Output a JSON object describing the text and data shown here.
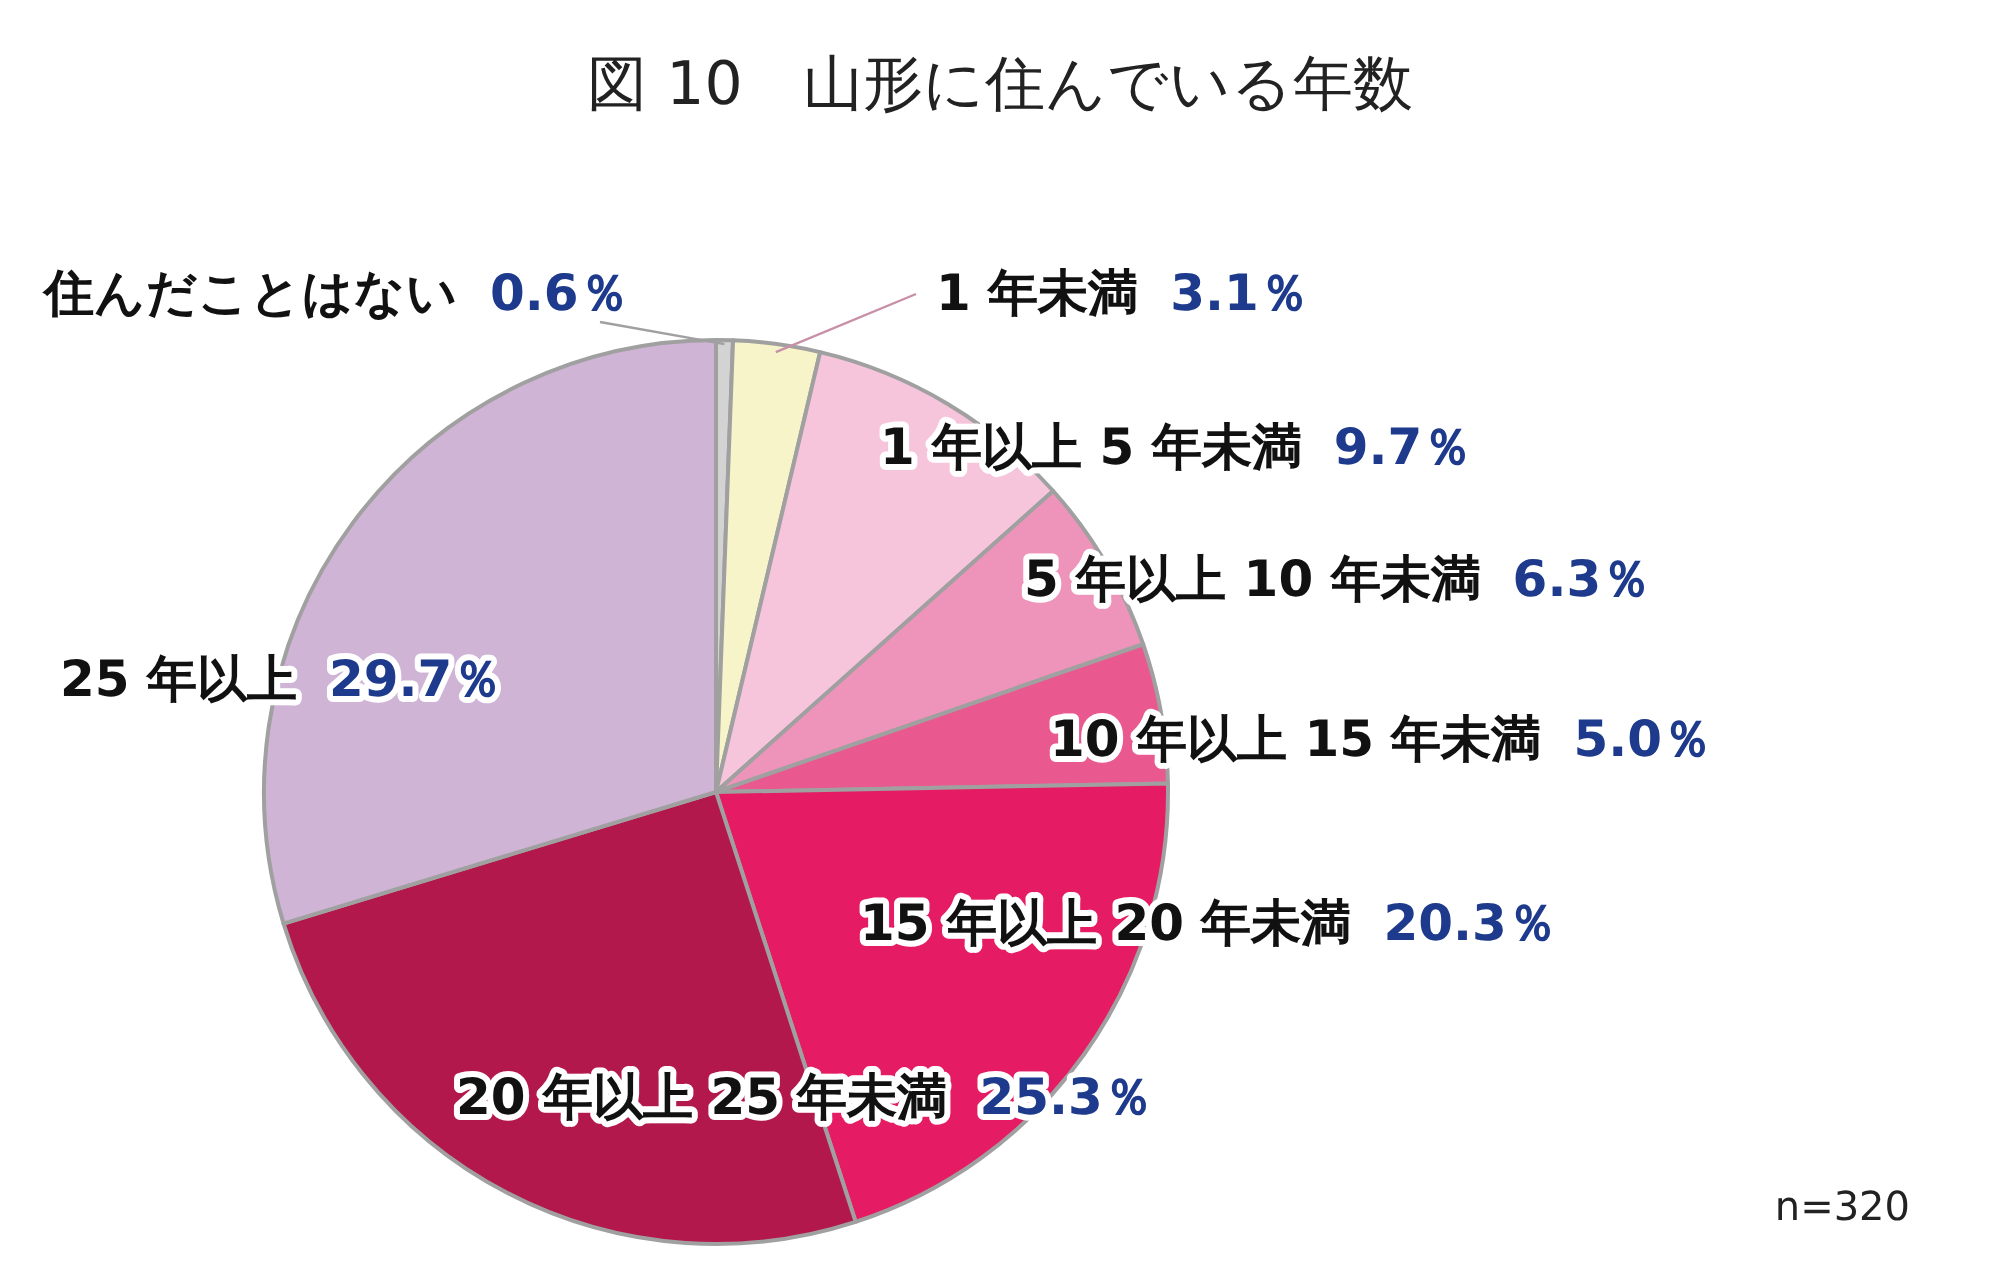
{
  "chart_data": {
    "type": "pie",
    "title": "図 10　山形に住んでいる年数",
    "categories": [
      "住んだことはない",
      "1 年未満",
      "1 年以上 5 年未満",
      "5 年以上 10 年未満",
      "10 年以上 15 年未満",
      "15 年以上 20 年未満",
      "20 年以上 25 年未満",
      "25 年以上"
    ],
    "values": [
      0.6,
      3.1,
      9.7,
      6.3,
      5.0,
      20.3,
      25.3,
      29.7
    ],
    "value_labels": [
      "0.6％",
      "3.1％",
      "9.7％",
      "6.3％",
      "5.0％",
      "20.3％",
      "25.3％",
      "29.7％"
    ],
    "colors": [
      "#d3d3d3",
      "#f8f4c9",
      "#f6c5db",
      "#ee94ba",
      "#e9598f",
      "#e51b63",
      "#b2184b",
      "#cfb4d6"
    ],
    "annotations": [
      "n=320"
    ]
  }
}
